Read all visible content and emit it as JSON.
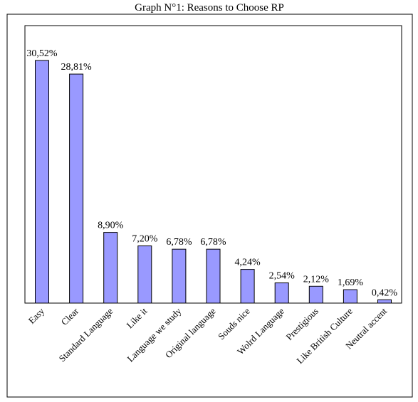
{
  "chart_data": {
    "type": "bar",
    "title": "Graph N°1: Reasons to Choose RP",
    "xlabel": "",
    "ylabel": "",
    "categories": [
      "Easy",
      "Clear",
      "Standard Language",
      "Like it",
      "Language we study",
      "Original language",
      "Souds nice",
      "Wolrd Language",
      "Prestigious",
      "Like British Culture",
      "Neutral accent"
    ],
    "values": [
      30.52,
      28.81,
      8.9,
      7.2,
      6.78,
      6.78,
      4.24,
      2.54,
      2.12,
      1.69,
      0.42
    ],
    "value_labels": [
      "30,52%",
      "28,81%",
      "8,90%",
      "7,20%",
      "6,78%",
      "6,78%",
      "4,24%",
      "2,54%",
      "2,12%",
      "1,69%",
      "0,42%"
    ],
    "ylim": [
      0,
      30.52
    ],
    "grid": false,
    "legend": "none",
    "bar_color": "#9999ff",
    "bar_stroke": "#000000"
  }
}
